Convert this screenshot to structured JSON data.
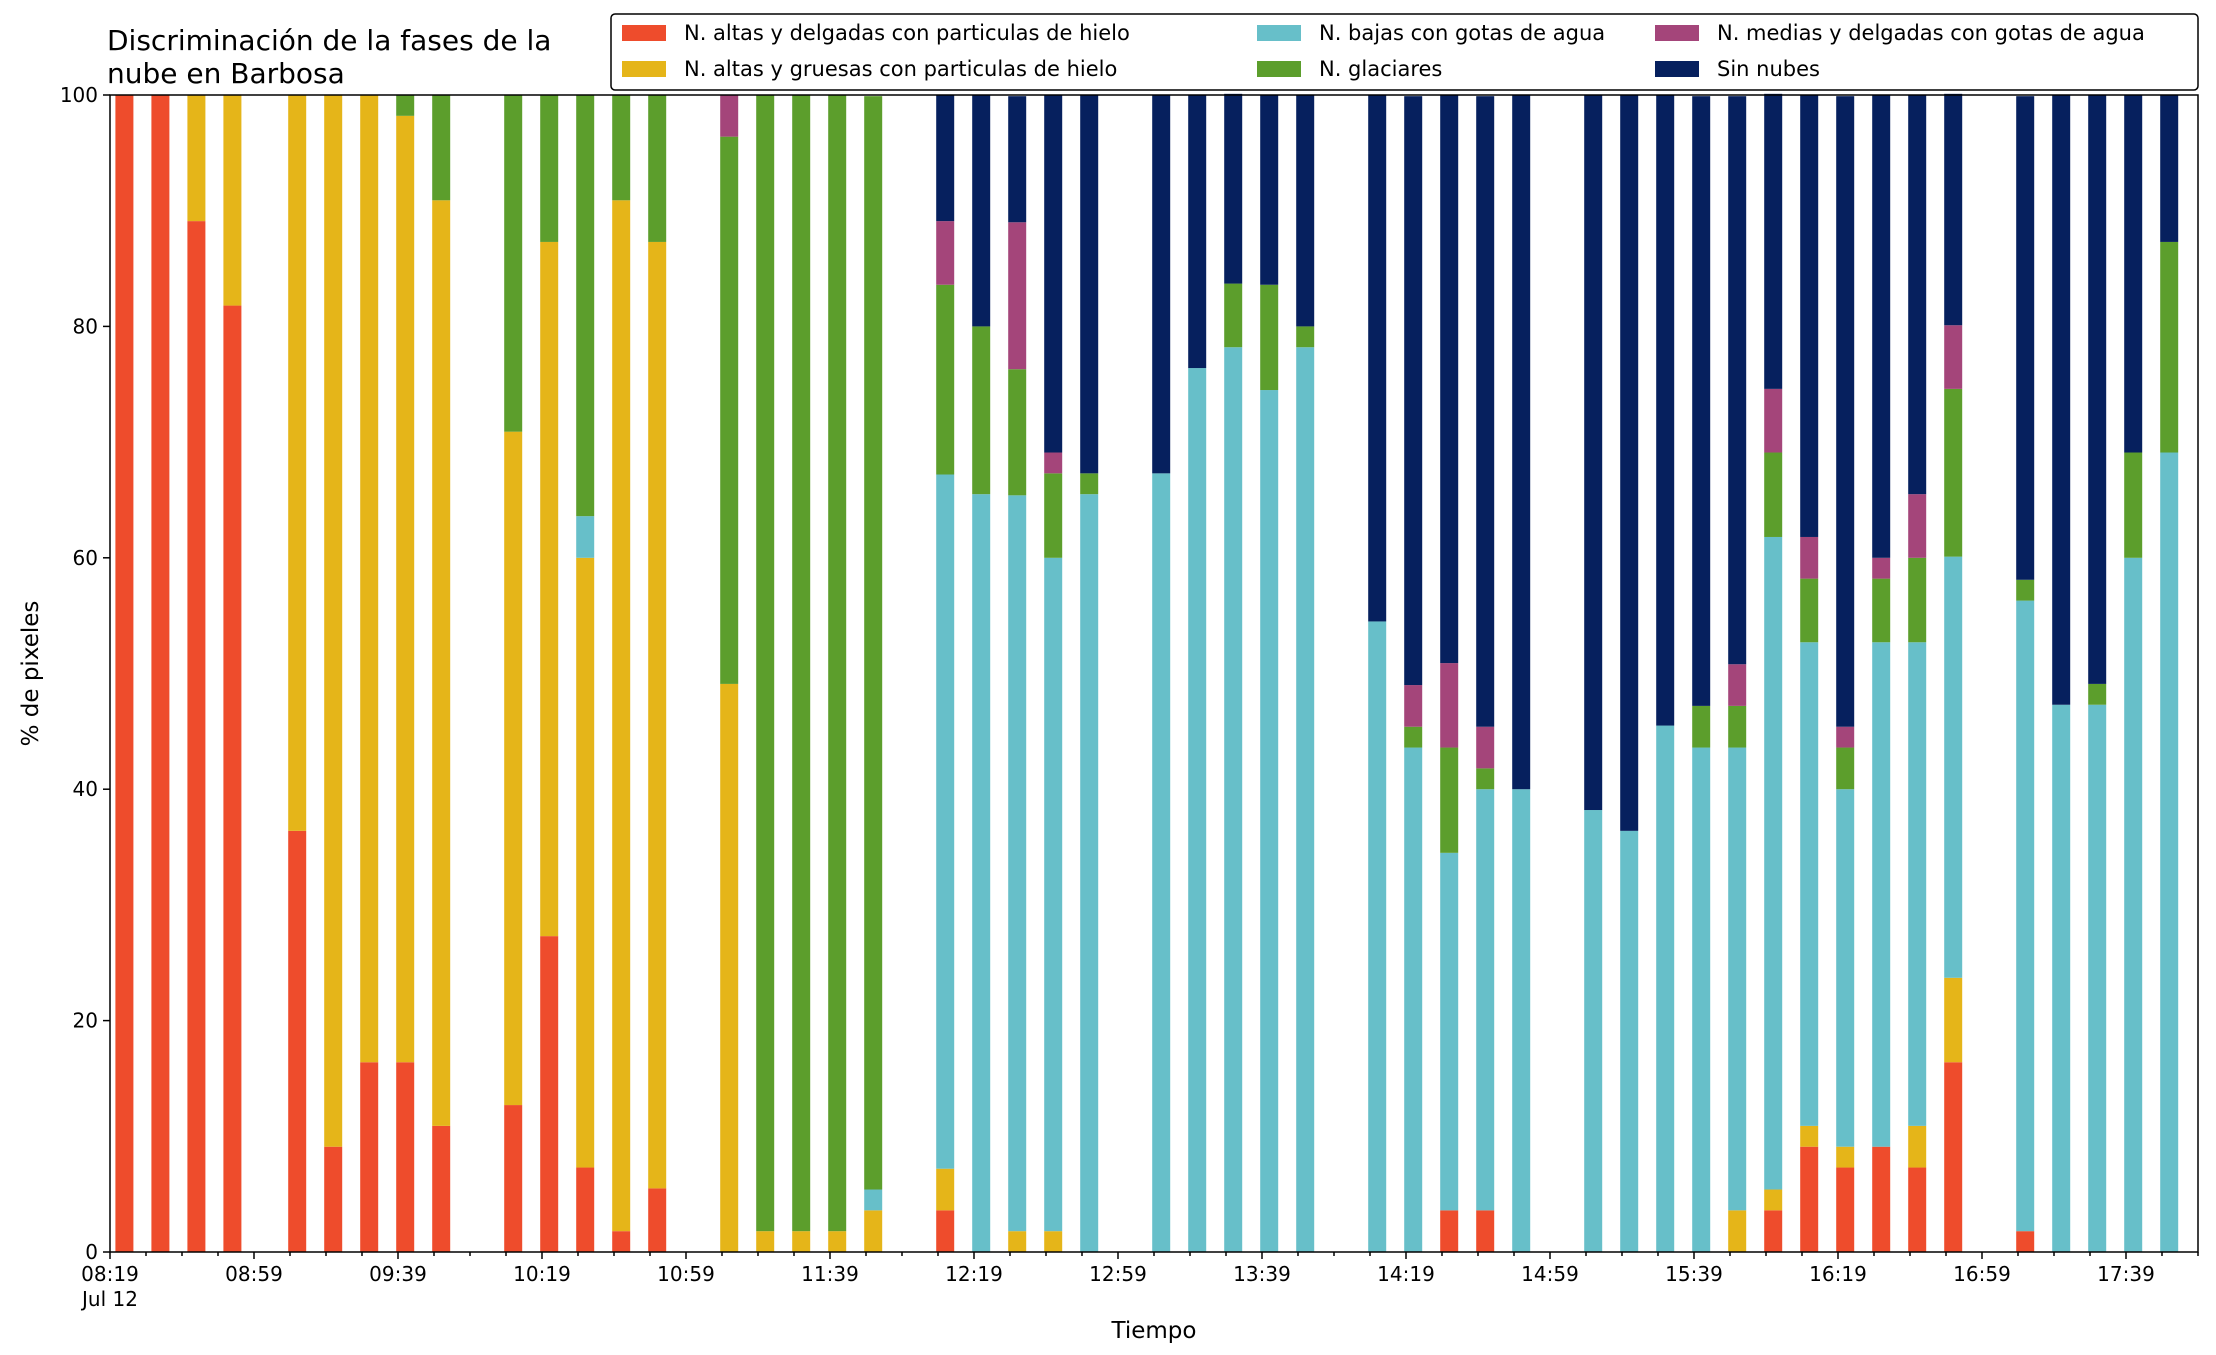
{
  "chart_data": {
    "type": "bar",
    "stacked": true,
    "title_lines": [
      "Discriminación de la fases de la",
      "nube en Barbosa"
    ],
    "xlabel": "Tiempo",
    "ylabel": "% de pixeles",
    "ylim": [
      0,
      100
    ],
    "yticks": [
      0,
      20,
      40,
      60,
      80,
      100
    ],
    "x_range": [
      "08:19",
      "17:59"
    ],
    "x_tick_labels": [
      "08:19",
      "08:59",
      "09:39",
      "10:19",
      "10:59",
      "11:39",
      "12:19",
      "12:59",
      "13:39",
      "14:19",
      "14:59",
      "15:39",
      "16:19",
      "16:59",
      "17:39"
    ],
    "x_date_label": "Jul 12",
    "grid": false,
    "legend_position": "top-right",
    "legend_columns": 3,
    "x": [
      "08:23",
      "08:33",
      "08:43",
      "08:53",
      "09:11",
      "09:21",
      "09:31",
      "09:41",
      "09:51",
      "10:11",
      "10:21",
      "10:31",
      "10:41",
      "10:51",
      "11:11",
      "11:21",
      "11:31",
      "11:41",
      "11:51",
      "12:11",
      "12:21",
      "12:31",
      "12:41",
      "12:51",
      "13:11",
      "13:21",
      "13:31",
      "13:41",
      "13:51",
      "14:11",
      "14:21",
      "14:31",
      "14:41",
      "14:51",
      "15:11",
      "15:21",
      "15:31",
      "15:41",
      "15:51",
      "16:01",
      "16:11",
      "16:21",
      "16:31",
      "16:41",
      "16:51",
      "17:11",
      "17:21",
      "17:31",
      "17:41",
      "17:51"
    ],
    "series": [
      {
        "name": "N. altas y delgadas con particulas de hielo",
        "color": "#ee4c2c",
        "values": [
          100,
          100,
          89.1,
          81.8,
          36.4,
          9.1,
          16.4,
          16.4,
          10.9,
          12.7,
          27.3,
          7.3,
          1.8,
          5.5,
          0,
          0,
          0,
          0,
          0,
          3.6,
          0,
          0,
          0,
          0,
          0,
          0,
          0,
          0,
          0,
          0,
          0,
          3.6,
          3.6,
          0,
          0,
          0,
          0,
          0,
          0,
          3.6,
          9.1,
          7.3,
          9.1,
          7.3,
          16.4,
          1.8,
          0,
          0,
          0,
          0
        ]
      },
      {
        "name": "N. altas y gruesas con particulas de hielo",
        "color": "#e5b519",
        "values": [
          0,
          0,
          10.9,
          18.2,
          63.6,
          90.9,
          83.6,
          81.8,
          80.0,
          58.2,
          60.0,
          52.7,
          89.1,
          81.8,
          49.1,
          1.8,
          1.8,
          1.8,
          3.6,
          3.6,
          0,
          1.8,
          1.8,
          0,
          0,
          0,
          0,
          0,
          0,
          0,
          0,
          0,
          0,
          0,
          0,
          0,
          0,
          0,
          3.6,
          1.8,
          1.8,
          1.8,
          0,
          3.6,
          7.3,
          0,
          0,
          0,
          0,
          0
        ]
      },
      {
        "name": "N. bajas con gotas de agua",
        "color": "#67bfc9",
        "values": [
          0,
          0,
          0,
          0,
          0,
          0,
          0,
          0,
          0,
          0,
          0,
          3.6,
          0,
          0,
          0,
          0,
          0,
          0,
          1.8,
          60.0,
          65.5,
          63.6,
          58.2,
          65.5,
          67.3,
          76.4,
          78.2,
          74.5,
          78.2,
          54.5,
          43.6,
          30.9,
          36.4,
          40.0,
          38.2,
          36.4,
          45.5,
          43.6,
          40.0,
          56.4,
          41.8,
          30.9,
          43.6,
          41.8,
          36.4,
          54.5,
          47.3,
          47.3,
          60.0,
          69.1
        ]
      },
      {
        "name": "N. glaciares",
        "color": "#5c9e2c",
        "values": [
          0,
          0,
          0,
          0,
          0,
          0,
          0,
          1.8,
          9.1,
          29.1,
          12.7,
          36.4,
          9.1,
          12.7,
          47.3,
          98.2,
          98.2,
          98.2,
          94.5,
          16.4,
          14.5,
          10.9,
          7.3,
          1.8,
          0,
          0,
          5.5,
          9.1,
          1.8,
          0,
          1.8,
          9.1,
          1.8,
          0,
          0,
          0,
          0,
          3.6,
          3.6,
          7.3,
          5.5,
          3.6,
          5.5,
          7.3,
          14.5,
          1.8,
          0,
          1.8,
          9.1,
          18.2
        ]
      },
      {
        "name": "N. medias y delgadas con gotas de agua",
        "color": "#a4457a",
        "values": [
          0,
          0,
          0,
          0,
          0,
          0,
          0,
          0,
          0,
          0,
          0,
          0,
          0,
          0,
          3.6,
          0,
          0,
          0,
          0,
          5.5,
          0,
          12.7,
          1.8,
          0,
          0,
          0,
          0,
          0,
          0,
          0,
          3.6,
          7.3,
          3.6,
          0,
          0,
          0,
          0,
          0,
          3.6,
          5.5,
          3.6,
          1.8,
          1.8,
          5.5,
          5.5,
          0,
          0,
          0,
          0,
          0
        ]
      },
      {
        "name": "Sin nubes",
        "color": "#06205e",
        "values": [
          0,
          0,
          0,
          0,
          0,
          0,
          0,
          0,
          0,
          0,
          0,
          0,
          0,
          0,
          0,
          0,
          0,
          0,
          0,
          10.9,
          20.0,
          10.9,
          30.9,
          32.7,
          32.7,
          23.6,
          16.4,
          16.4,
          20.0,
          45.5,
          50.9,
          49.1,
          54.5,
          60.0,
          61.8,
          63.6,
          54.5,
          52.7,
          49.1,
          25.5,
          38.2,
          54.5,
          40.0,
          34.5,
          20.0,
          41.8,
          52.7,
          50.9,
          30.9,
          12.7
        ]
      }
    ]
  }
}
